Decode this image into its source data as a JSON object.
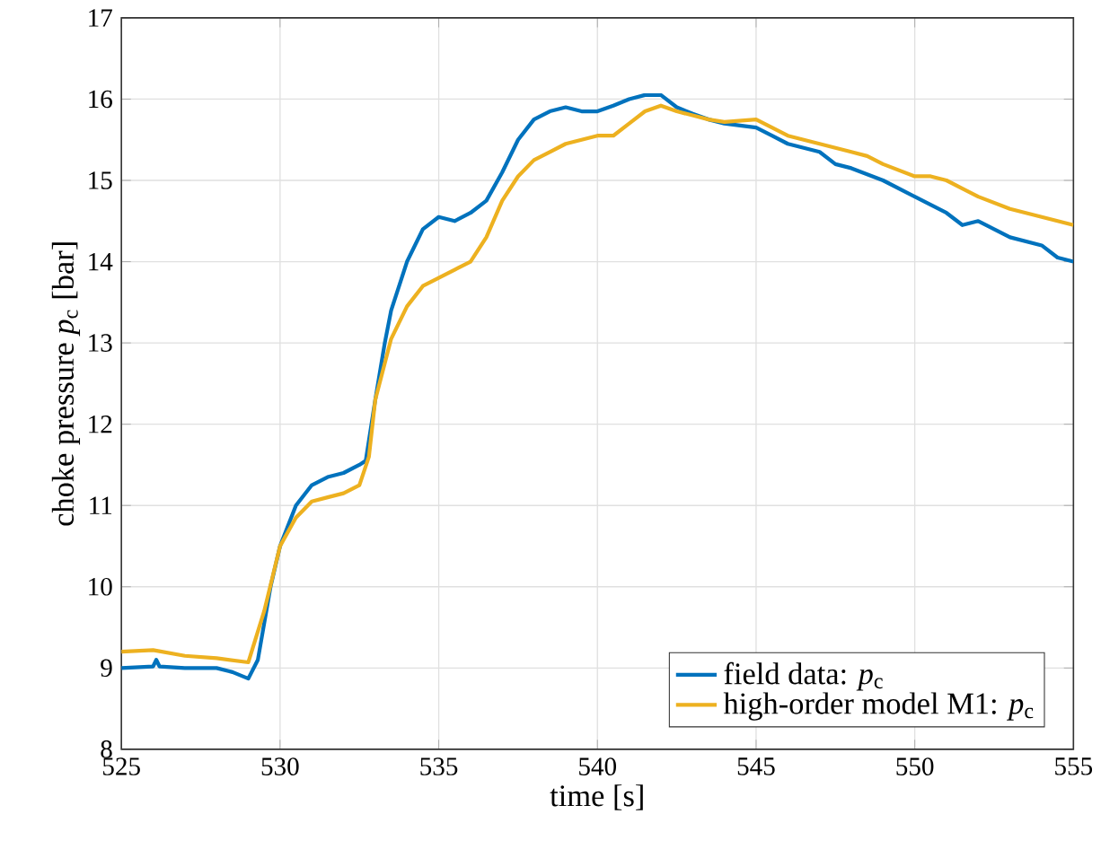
{
  "chart_data": {
    "type": "line",
    "xlabel": "time [s]",
    "ylabel": "choke pressure *p*$_{c}$ [bar]",
    "xlim": [
      525,
      555
    ],
    "ylim": [
      8,
      17
    ],
    "xticks": [
      525,
      530,
      535,
      540,
      545,
      550,
      555
    ],
    "yticks": [
      8,
      9,
      10,
      11,
      12,
      13,
      14,
      15,
      16,
      17
    ],
    "grid": true,
    "legend": "bottom right",
    "line_style": "solid",
    "marker": "none",
    "series": [
      {
        "name": "field data: *p*$_{c}$",
        "color": "#0072bd",
        "x": [
          525,
          526,
          526.1,
          526.2,
          527,
          528,
          528.5,
          529,
          529.3,
          529.7,
          530,
          530.5,
          531,
          531.5,
          532,
          532.5,
          532.7,
          533,
          533.3,
          533.5,
          534,
          534.5,
          535,
          535.5,
          536,
          536.5,
          537,
          537.5,
          538,
          538.5,
          539,
          539.5,
          540,
          540.5,
          541,
          541.5,
          542,
          542.5,
          543,
          543.5,
          544,
          545,
          545.5,
          546,
          547,
          547.5,
          548,
          549,
          550,
          550.5,
          551,
          551.5,
          552,
          552.5,
          553,
          554,
          554.5,
          555
        ],
        "values": [
          9.0,
          9.02,
          9.1,
          9.02,
          9.0,
          9.0,
          8.95,
          8.87,
          9.1,
          10.0,
          10.5,
          11.0,
          11.25,
          11.35,
          11.4,
          11.5,
          11.55,
          12.3,
          13.0,
          13.4,
          14.0,
          14.4,
          14.55,
          14.5,
          14.6,
          14.75,
          15.1,
          15.5,
          15.75,
          15.85,
          15.9,
          15.85,
          15.85,
          15.92,
          16.0,
          16.05,
          16.05,
          15.9,
          15.82,
          15.75,
          15.7,
          15.65,
          15.55,
          15.45,
          15.35,
          15.2,
          15.15,
          15.0,
          14.8,
          14.7,
          14.6,
          14.45,
          14.5,
          14.4,
          14.3,
          14.2,
          14.05,
          14.0
        ]
      },
      {
        "name": "high-order model M1: *p*$_{c}$",
        "color": "#edb120",
        "x": [
          525,
          526,
          527,
          528,
          529,
          529.5,
          530,
          530.5,
          531,
          531.5,
          532,
          532.5,
          532.8,
          533,
          533.5,
          534,
          534.5,
          535,
          535.5,
          536,
          536.5,
          537,
          537.5,
          538,
          538.5,
          539,
          539.5,
          540,
          540.5,
          541,
          541.5,
          542,
          542.5,
          543,
          543.5,
          544,
          545,
          545.5,
          546,
          547,
          548,
          548.5,
          549,
          550,
          550.5,
          551,
          551.5,
          552,
          553,
          554,
          555
        ],
        "values": [
          9.2,
          9.22,
          9.15,
          9.12,
          9.07,
          9.7,
          10.5,
          10.85,
          11.05,
          11.1,
          11.15,
          11.25,
          11.6,
          12.3,
          13.05,
          13.45,
          13.7,
          13.8,
          13.9,
          14.0,
          14.3,
          14.75,
          15.05,
          15.25,
          15.35,
          15.45,
          15.5,
          15.55,
          15.55,
          15.7,
          15.85,
          15.92,
          15.85,
          15.8,
          15.75,
          15.72,
          15.75,
          15.65,
          15.55,
          15.45,
          15.35,
          15.3,
          15.2,
          15.05,
          15.05,
          15.0,
          14.9,
          14.8,
          14.65,
          14.55,
          14.45
        ]
      }
    ]
  }
}
